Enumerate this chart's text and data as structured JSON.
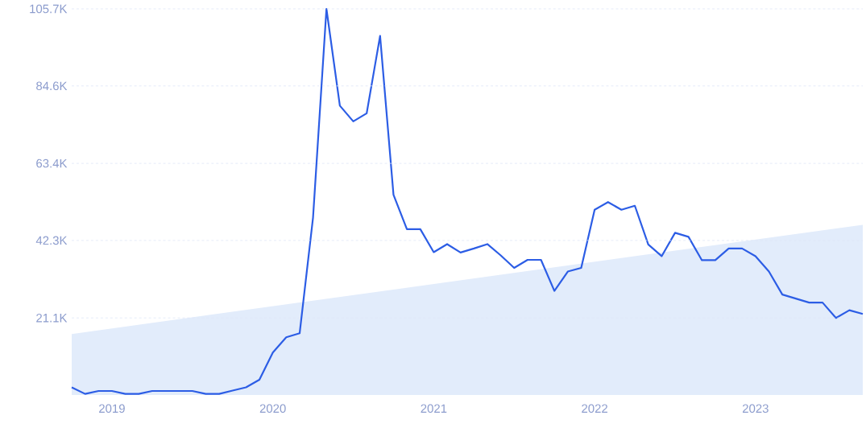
{
  "chart_data": {
    "type": "line",
    "x": [
      "2018-10",
      "2018-11",
      "2018-12",
      "2019-01",
      "2019-02",
      "2019-03",
      "2019-04",
      "2019-05",
      "2019-06",
      "2019-07",
      "2019-08",
      "2019-09",
      "2019-10",
      "2019-11",
      "2019-12",
      "2020-01",
      "2020-02",
      "2020-03",
      "2020-04",
      "2020-05",
      "2020-06",
      "2020-07",
      "2020-08",
      "2020-09",
      "2020-10",
      "2020-11",
      "2020-12",
      "2021-01",
      "2021-02",
      "2021-03",
      "2021-04",
      "2021-05",
      "2021-06",
      "2021-07",
      "2021-08",
      "2021-09",
      "2021-10",
      "2021-11",
      "2021-12",
      "2022-01",
      "2022-02",
      "2022-03",
      "2022-04",
      "2022-05",
      "2022-06",
      "2022-07",
      "2022-08",
      "2022-09",
      "2022-10",
      "2022-11",
      "2022-12",
      "2023-01",
      "2023-02",
      "2023-03",
      "2023-04",
      "2023-05",
      "2023-06",
      "2023-07",
      "2023-08",
      "2023-09"
    ],
    "series": [
      {
        "type": "area",
        "color": "#e2ecfb",
        "x": [
          "2018-10",
          "2023-09"
        ],
        "values": [
          16700,
          46600
        ]
      },
      {
        "color": "#2c5de5",
        "values": [
          2100,
          300,
          1100,
          1100,
          300,
          300,
          1100,
          1100,
          1100,
          1100,
          300,
          300,
          1200,
          2100,
          4200,
          11600,
          15800,
          16900,
          48600,
          105700,
          79200,
          74900,
          77100,
          98300,
          54800,
          45400,
          45400,
          39100,
          41300,
          39000,
          40100,
          41300,
          38200,
          34800,
          37000,
          37000,
          28500,
          33800,
          34800,
          50700,
          52800,
          50700,
          51800,
          41200,
          38000,
          44400,
          43300,
          36900,
          36900,
          40100,
          40100,
          38000,
          33800,
          27500,
          26400,
          25300,
          25300,
          21100,
          23200,
          22200
        ]
      }
    ],
    "xlim": [
      "2018-10",
      "2023-09"
    ],
    "xticks": [
      {
        "value": "2019",
        "label": "2019"
      },
      {
        "value": "2020",
        "label": "2020"
      },
      {
        "value": "2021",
        "label": "2021"
      },
      {
        "value": "2022",
        "label": "2022"
      },
      {
        "value": "2023",
        "label": "2023"
      }
    ],
    "ylim": [
      0,
      105700
    ],
    "yticks": [
      {
        "value": 21100,
        "label": "21.1K"
      },
      {
        "value": 42300,
        "label": "42.3K"
      },
      {
        "value": 63400,
        "label": "63.4K"
      },
      {
        "value": 84600,
        "label": "84.6K"
      },
      {
        "value": 105700,
        "label": "105.7K"
      }
    ],
    "grid": "y",
    "marker": "none",
    "line_style": "solid"
  }
}
